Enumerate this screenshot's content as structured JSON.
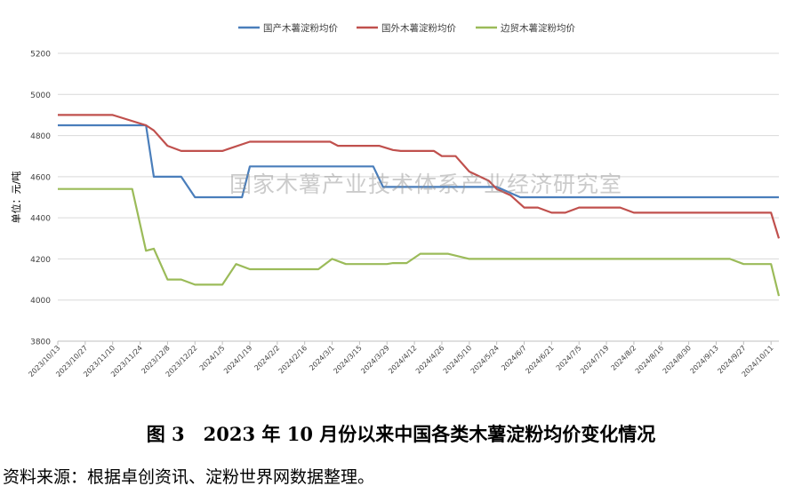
{
  "watermark": "国家木薯产业技术体系产业经济研究室",
  "caption": "图 3　2023 年 10 月份以来中国各类木薯淀粉均价变化情况",
  "source": "资料来源：根据卓创资讯、淀粉世界网数据整理。",
  "chart_data": {
    "type": "line",
    "title": "",
    "xlabel": "",
    "ylabel": "单位：元/吨",
    "ylim": [
      3800,
      5200
    ],
    "yticks": [
      3800,
      4000,
      4200,
      4400,
      4600,
      4800,
      5000,
      5200
    ],
    "grid": true,
    "legend_position": "top",
    "xtick_labels": [
      "2023/10/13",
      "2023/10/27",
      "2023/11/10",
      "2023/11/24",
      "2023/12/8",
      "2023/12/22",
      "2024/1/5",
      "2024/1/19",
      "2024/2/2",
      "2024/2/16",
      "2024/3/1",
      "2024/3/15",
      "2024/3/29",
      "2024/4/12",
      "2024/4/26",
      "2024/5/10",
      "2024/5/24",
      "2024/6/7",
      "2024/6/21",
      "2024/7/5",
      "2024/7/19",
      "2024/8/2",
      "2024/8/16",
      "2024/8/30",
      "2024/9/13",
      "2024/9/27",
      "2024/10/11"
    ],
    "series": [
      {
        "name": "国产木薯淀粉均价",
        "color": "#4a7ebb",
        "points": [
          [
            "2023/10/13",
            4850
          ],
          [
            "2023/11/27",
            4850
          ],
          [
            "2023/12/1",
            4600
          ],
          [
            "2023/12/15",
            4600
          ],
          [
            "2023/12/22",
            4500
          ],
          [
            "2024/1/15",
            4500
          ],
          [
            "2024/1/19",
            4650
          ],
          [
            "2024/3/22",
            4650
          ],
          [
            "2024/3/27",
            4550
          ],
          [
            "2024/5/20",
            4550
          ],
          [
            "2024/5/24",
            4550
          ],
          [
            "2024/6/5",
            4500
          ],
          [
            "2024/10/15",
            4500
          ]
        ]
      },
      {
        "name": "国外木薯淀粉均价",
        "color": "#c0504d",
        "points": [
          [
            "2023/10/13",
            4900
          ],
          [
            "2023/11/10",
            4900
          ],
          [
            "2023/11/27",
            4850
          ],
          [
            "2023/12/1",
            4825
          ],
          [
            "2023/12/8",
            4750
          ],
          [
            "2023/12/15",
            4725
          ],
          [
            "2024/1/5",
            4725
          ],
          [
            "2024/1/19",
            4770
          ],
          [
            "2024/2/29",
            4770
          ],
          [
            "2024/3/4",
            4750
          ],
          [
            "2024/3/25",
            4750
          ],
          [
            "2024/4/1",
            4730
          ],
          [
            "2024/4/5",
            4725
          ],
          [
            "2024/4/22",
            4725
          ],
          [
            "2024/4/26",
            4700
          ],
          [
            "2024/5/3",
            4700
          ],
          [
            "2024/5/10",
            4625
          ],
          [
            "2024/5/20",
            4580
          ],
          [
            "2024/5/24",
            4540
          ],
          [
            "2024/5/31",
            4510
          ],
          [
            "2024/6/7",
            4450
          ],
          [
            "2024/6/14",
            4450
          ],
          [
            "2024/6/21",
            4425
          ],
          [
            "2024/6/28",
            4425
          ],
          [
            "2024/7/5",
            4450
          ],
          [
            "2024/7/26",
            4450
          ],
          [
            "2024/8/2",
            4425
          ],
          [
            "2024/10/11",
            4425
          ],
          [
            "2024/10/15",
            4300
          ]
        ]
      },
      {
        "name": "边贸木薯淀粉均价",
        "color": "#9bbb59",
        "points": [
          [
            "2023/10/13",
            4540
          ],
          [
            "2023/11/20",
            4540
          ],
          [
            "2023/11/27",
            4240
          ],
          [
            "2023/12/1",
            4250
          ],
          [
            "2023/12/8",
            4100
          ],
          [
            "2023/12/15",
            4100
          ],
          [
            "2023/12/22",
            4075
          ],
          [
            "2024/1/5",
            4075
          ],
          [
            "2024/1/12",
            4175
          ],
          [
            "2024/1/19",
            4150
          ],
          [
            "2024/2/23",
            4150
          ],
          [
            "2024/3/1",
            4200
          ],
          [
            "2024/3/8",
            4175
          ],
          [
            "2024/3/29",
            4175
          ],
          [
            "2024/4/1",
            4180
          ],
          [
            "2024/4/8",
            4180
          ],
          [
            "2024/4/15",
            4225
          ],
          [
            "2024/4/29",
            4225
          ],
          [
            "2024/5/10",
            4200
          ],
          [
            "2024/9/20",
            4200
          ],
          [
            "2024/9/27",
            4175
          ],
          [
            "2024/10/11",
            4175
          ],
          [
            "2024/10/15",
            4020
          ]
        ]
      }
    ]
  }
}
